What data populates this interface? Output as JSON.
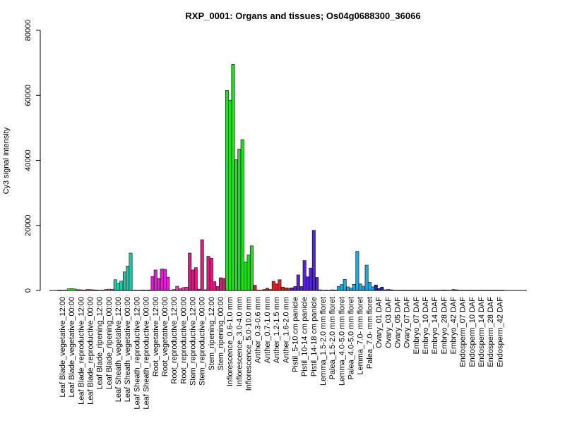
{
  "chart_data": {
    "type": "bar",
    "title": "RXP_0001: Organs and tissues; Os04g0688300_36066",
    "xlabel": "",
    "ylabel": "Cy3 signal intensity",
    "ylim": [
      0,
      80000
    ],
    "yticks": [
      0,
      20000,
      40000,
      60000,
      80000
    ],
    "grid": false,
    "legend": "none",
    "groups": [
      {
        "label": "Leaf Blade_vegetative_12:00",
        "color": "#ff2a2a",
        "values": [
          150,
          100,
          80
        ]
      },
      {
        "label": "Leaf Blade_vegetative_00:00",
        "color": "#2aff2a",
        "values": [
          500,
          550,
          450
        ]
      },
      {
        "label": "Leaf Blade_reproductive_12:00",
        "color": "#ff5555",
        "values": [
          250,
          200,
          150
        ]
      },
      {
        "label": "Leaf Blade_reproductive_00:00",
        "color": "#ff6666",
        "values": [
          300,
          250,
          200
        ]
      },
      {
        "label": "Leaf Blade_ripening_12:00",
        "color": "#ff7777",
        "values": [
          150,
          100,
          100
        ]
      },
      {
        "label": "Leaf Blade_ripening_00:00",
        "color": "#ff8888",
        "values": [
          300,
          400,
          350
        ]
      },
      {
        "label": "Leaf Sheath_vegetative_12:00",
        "color": "#21c9a6",
        "values": [
          3300,
          2200,
          2900
        ]
      },
      {
        "label": "Leaf Sheath_vegetative_00:00",
        "color": "#21c9a6",
        "values": [
          5700,
          7500,
          11500
        ]
      },
      {
        "label": "Leaf Sheath_reproductive_12:00",
        "color": "#a040a0",
        "values": [
          100,
          100,
          100
        ]
      },
      {
        "label": "Leaf Sheath_reproductive_00:00",
        "color": "#a040a0",
        "values": [
          150,
          100,
          150
        ]
      },
      {
        "label": "Root_vegetative_12:00",
        "color": "#e020d0",
        "values": [
          4300,
          6300,
          3700
        ]
      },
      {
        "label": "Root_vegetative_00:00",
        "color": "#e020d0",
        "values": [
          6600,
          6500,
          4100
        ]
      },
      {
        "label": "Root_reproductive_12:00",
        "color": "#e040b0",
        "values": [
          100,
          300,
          1300
        ]
      },
      {
        "label": "Root_reproductive_00:00",
        "color": "#e040b0",
        "values": [
          500,
          900,
          1000
        ]
      },
      {
        "label": "Stem_reproductive_12:00",
        "color": "#e01a80",
        "values": [
          11500,
          6300,
          7000
        ]
      },
      {
        "label": "Stem_reproductive_00:00",
        "color": "#e01a80",
        "values": [
          400,
          15600,
          200
        ]
      },
      {
        "label": "Stem_ripening_12:00",
        "color": "#e01a80",
        "values": [
          10500,
          9900,
          2700
        ]
      },
      {
        "label": "Stem_ripening_00:00",
        "color": "#e01a80",
        "values": [
          1200,
          3900,
          3700
        ]
      },
      {
        "label": "Inflorescence_0.6-1.0 mm",
        "color": "#22dd22",
        "values": [
          61500,
          58500,
          69500
        ]
      },
      {
        "label": "Inflorescence_3.0-4.0 mm",
        "color": "#22dd22",
        "values": [
          40200,
          43500,
          46400
        ]
      },
      {
        "label": "Inflorescence_5.0-10.0 mm",
        "color": "#22dd22",
        "values": [
          8700,
          10900,
          13700
        ]
      },
      {
        "label": "Anther_0.3-0.6 mm",
        "color": "#dd2222",
        "values": [
          1600,
          100,
          100
        ]
      },
      {
        "label": "Anther_0.7-1.0 mm",
        "color": "#dd2222",
        "values": [
          300,
          700,
          300
        ]
      },
      {
        "label": "Anther_1.2-1.5 mm",
        "color": "#dd2222",
        "values": [
          2800,
          2000,
          3300
        ]
      },
      {
        "label": "Anther_1.6-2.0 mm",
        "color": "#dd2222",
        "values": [
          1000,
          800,
          700
        ]
      },
      {
        "label": "Pistil_5-10 cm panicle",
        "color": "#5522dd",
        "values": [
          800,
          1200,
          4800
        ]
      },
      {
        "label": "Pistil_10-14 cm panicle",
        "color": "#5522dd",
        "values": [
          1200,
          9200,
          4200
        ]
      },
      {
        "label": "Pistil_14-18 cm panicle",
        "color": "#5522dd",
        "values": [
          6900,
          18500,
          4000
        ]
      },
      {
        "label": "Lemma_1.5-2.0 mm floret",
        "color": "#22aadd",
        "values": [
          200,
          100,
          150
        ]
      },
      {
        "label": "Palea_1.5-2.0 mm floret",
        "color": "#22aadd",
        "values": [
          100,
          200,
          150
        ]
      },
      {
        "label": "Lemma_4.0-5.0 mm floret",
        "color": "#22aadd",
        "values": [
          1200,
          1800,
          3400
        ]
      },
      {
        "label": "Palea_4.0-5.0 mm floret",
        "color": "#22aadd",
        "values": [
          1100,
          700,
          1900
        ]
      },
      {
        "label": "Lemma_7.0- mm floret",
        "color": "#22aadd",
        "values": [
          12000,
          2000,
          1300
        ]
      },
      {
        "label": "Palea_7.0- mm floret",
        "color": "#22aadd",
        "values": [
          7800,
          2500,
          1100
        ]
      },
      {
        "label": "Ovary_01 DAF",
        "color": "#2222cc",
        "values": [
          1700,
          600,
          1000
        ]
      },
      {
        "label": "Ovary_03 DAF",
        "color": "#2222cc",
        "values": [
          200,
          300,
          200
        ]
      },
      {
        "label": "Ovary_05 DAF",
        "color": "#2222cc",
        "values": [
          100,
          100,
          100
        ]
      },
      {
        "label": "Ovary_07 DAF",
        "color": "#2222cc",
        "values": [
          100,
          100,
          100
        ]
      },
      {
        "label": "Embryo_07 DAF",
        "color": "#cc22cc",
        "values": [
          100,
          100,
          100
        ]
      },
      {
        "label": "Embryo_10 DAF",
        "color": "#cc22cc",
        "values": [
          100,
          100,
          100
        ]
      },
      {
        "label": "Embryo_14 DAF",
        "color": "#cc22cc",
        "values": [
          100,
          100,
          100
        ]
      },
      {
        "label": "Embryo_28 DAF",
        "color": "#cc22cc",
        "values": [
          100,
          150,
          100
        ]
      },
      {
        "label": "Embryo_42 DAF",
        "color": "#cc22cc",
        "values": [
          100,
          300,
          200
        ]
      },
      {
        "label": "Endosperm_07 DAF",
        "color": "#dd2288",
        "values": [
          100,
          100,
          100
        ]
      },
      {
        "label": "Endosperm_10 DAF",
        "color": "#dd2288",
        "values": [
          100,
          100,
          100
        ]
      },
      {
        "label": "Endosperm_14 DAF",
        "color": "#dd2288",
        "values": [
          100,
          100,
          100
        ]
      },
      {
        "label": "Endosperm_28 DAF",
        "color": "#dd2288",
        "values": [
          100,
          100,
          100
        ]
      },
      {
        "label": "Endosperm_42 DAF",
        "color": "#dd2288",
        "values": [
          100,
          100,
          100
        ]
      }
    ]
  }
}
